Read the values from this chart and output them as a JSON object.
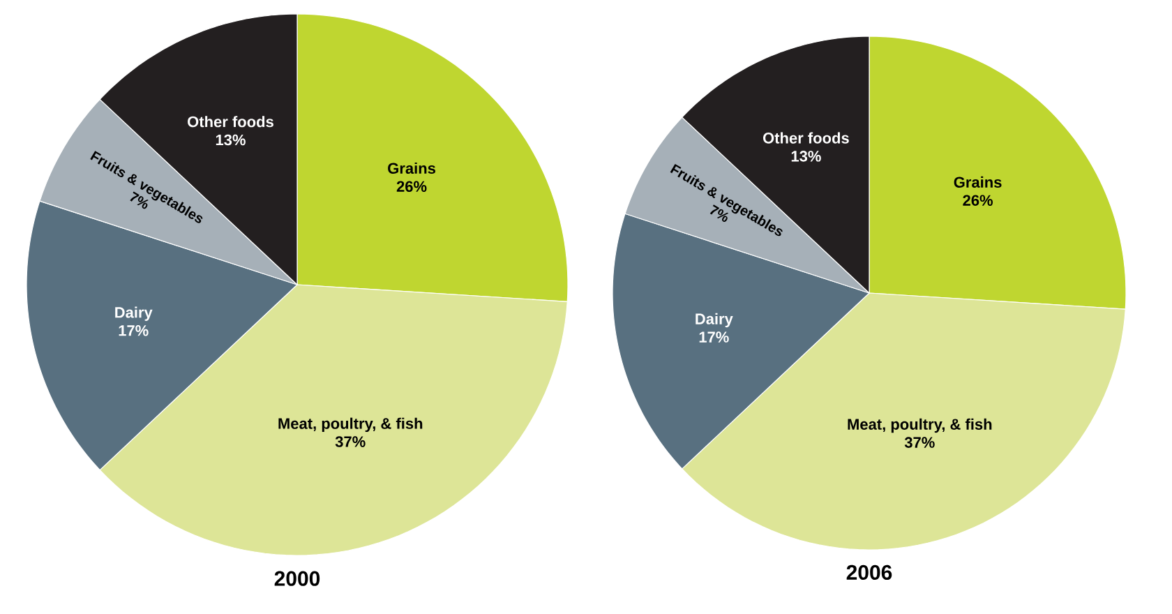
{
  "chart_data": [
    {
      "type": "pie",
      "title": "2000",
      "categories": [
        "Grains",
        "Meat, poultry, & fish",
        "Dairy",
        "Fruits & vegetables",
        "Other foods"
      ],
      "values": [
        26,
        37,
        17,
        7,
        13
      ],
      "value_labels": [
        "26%",
        "37%",
        "17%",
        "7%",
        "13%"
      ],
      "colors": [
        "#bfd630",
        "#dde597",
        "#587080",
        "#a6b0b8",
        "#231f20"
      ]
    },
    {
      "type": "pie",
      "title": "2006",
      "categories": [
        "Grains",
        "Meat, poultry, & fish",
        "Dairy",
        "Fruits & vegetables",
        "Other foods"
      ],
      "values": [
        26,
        37,
        17,
        7,
        13
      ],
      "value_labels": [
        "26%",
        "37%",
        "17%",
        "7%",
        "13%"
      ],
      "colors": [
        "#bfd630",
        "#dde597",
        "#587080",
        "#a6b0b8",
        "#231f20"
      ]
    }
  ]
}
